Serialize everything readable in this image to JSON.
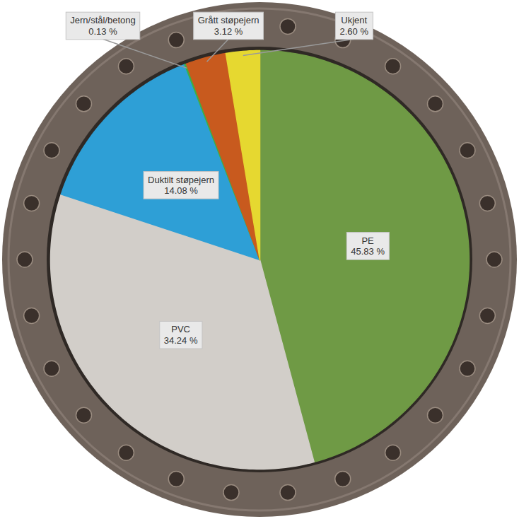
{
  "chart_data": {
    "type": "pie",
    "categories": [
      "PE",
      "PVC",
      "Duktilt støpejern",
      "Jern/stål/betong",
      "Grått støpejern",
      "Ukjent"
    ],
    "values": [
      45.83,
      34.24,
      14.08,
      0.13,
      3.12,
      2.6
    ],
    "value_labels": [
      "45.83 %",
      "34.24 %",
      "14.08 %",
      "0.13 %",
      "3.12 %",
      "2.60 %"
    ],
    "colors": [
      "#6f9a45",
      "#d2cec9",
      "#2e9fd6",
      "#3cb043",
      "#c85a1e",
      "#e6d830"
    ],
    "data_labels": true
  }
}
